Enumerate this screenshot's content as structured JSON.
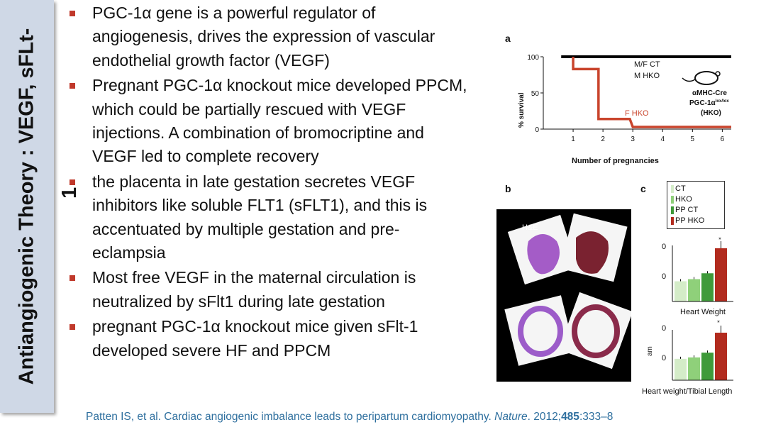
{
  "slide": {
    "title": "Antiangiogenic Theory : VEGF, sFLt-",
    "title_overflow": "1",
    "bullets": [
      "PGC-1α gene is a powerful regulator of angiogenesis, drives the expression of vascular endothelial growth factor (VEGF)",
      "Pregnant PGC-1α knockout mice developed PPCM, which could be partially rescued with VEGF injections. A combination of bromocriptine and VEGF led to complete recovery",
      "the placenta in late gestation secretes VEGF inhibitors like soluble FLT1 (sFLT1), and this is accentuated by multiple gestation and pre-eclampsia",
      "Most free VEGF in the maternal circulation is neutralized by sFlt1 during late gestation",
      "pregnant PGC-1α knockout mice given sFlt-1 developed severe HF and PPCM"
    ],
    "citation": {
      "authors": "Patten IS, et al. Cardiac angiogenic imbalance leads to peripartum cardiomyopathy. ",
      "journal": "Nature",
      "year": ". 2012;",
      "volume": "485",
      "pages": ":333–8"
    },
    "colors": {
      "title_bar": "#cfd8e6",
      "bullet": "#c0392b",
      "citation": "#2e6f9e",
      "hko_line": "#c9442c"
    }
  },
  "figure": {
    "panel_a": {
      "letter": "a",
      "ylabel": "% survival",
      "xlabel": "Number of pregnancies",
      "yticks": [
        "100",
        "50",
        "0"
      ],
      "xticks": [
        "1",
        "2",
        "3",
        "4",
        "5",
        "6"
      ],
      "label_ct": "M/F CT",
      "label_mhko": "M HKO",
      "label_fhko": "F HKO",
      "mouse_label_1": "αMHC-Cre",
      "mouse_label_2": "PGC-1α",
      "mouse_label_2_sup": "lox/lox",
      "mouse_label_3": "(HKO)"
    },
    "panel_b": {
      "letter": "b",
      "stain": "H&E"
    },
    "panel_c": {
      "letter": "c",
      "legend": [
        "CT",
        "HKO",
        "PP CT",
        "PP HKO"
      ],
      "legend_colors": [
        "#d4ecc8",
        "#8fd07a",
        "#3f9a3a",
        "#b22b1e"
      ],
      "top_label": "Heart Weight",
      "bottom_label": "Heart weight/Tibial Length",
      "tick_0": "0",
      "tick_1": "0",
      "bottom_axis": "am",
      "star": "*"
    }
  },
  "chart_data": [
    {
      "type": "line",
      "title": "",
      "xlabel": "Number of pregnancies",
      "ylabel": "% survival",
      "xlim": [
        0,
        6.3
      ],
      "ylim": [
        0,
        100
      ],
      "series": [
        {
          "name": "M/F CT",
          "x": [
            0.6,
            6.3
          ],
          "y": [
            100,
            100
          ]
        },
        {
          "name": "M HKO",
          "x": [
            0.6,
            6.3
          ],
          "y": [
            100,
            100
          ]
        },
        {
          "name": "F HKO",
          "x": [
            1,
            1,
            1.3,
            1.3,
            1.85,
            1.85,
            2.3,
            2.9,
            2.9,
            3,
            6.3
          ],
          "y": [
            100,
            83,
            83,
            83,
            83,
            14,
            14,
            14,
            14,
            3,
            3
          ]
        }
      ]
    },
    {
      "type": "bar",
      "title": "",
      "xlabel": "Heart Weight",
      "ylabel": "",
      "categories": [
        "CT",
        "HKO",
        "PP CT",
        "PP HKO"
      ],
      "values": [
        0.38,
        0.42,
        0.53,
        1.0
      ],
      "grid": false
    },
    {
      "type": "bar",
      "title": "",
      "xlabel": "Heart weight/Tibial Length",
      "ylabel": "",
      "categories": [
        "CT",
        "HKO",
        "PP CT",
        "PP HKO"
      ],
      "values": [
        0.45,
        0.48,
        0.58,
        1.0
      ],
      "grid": false
    }
  ]
}
